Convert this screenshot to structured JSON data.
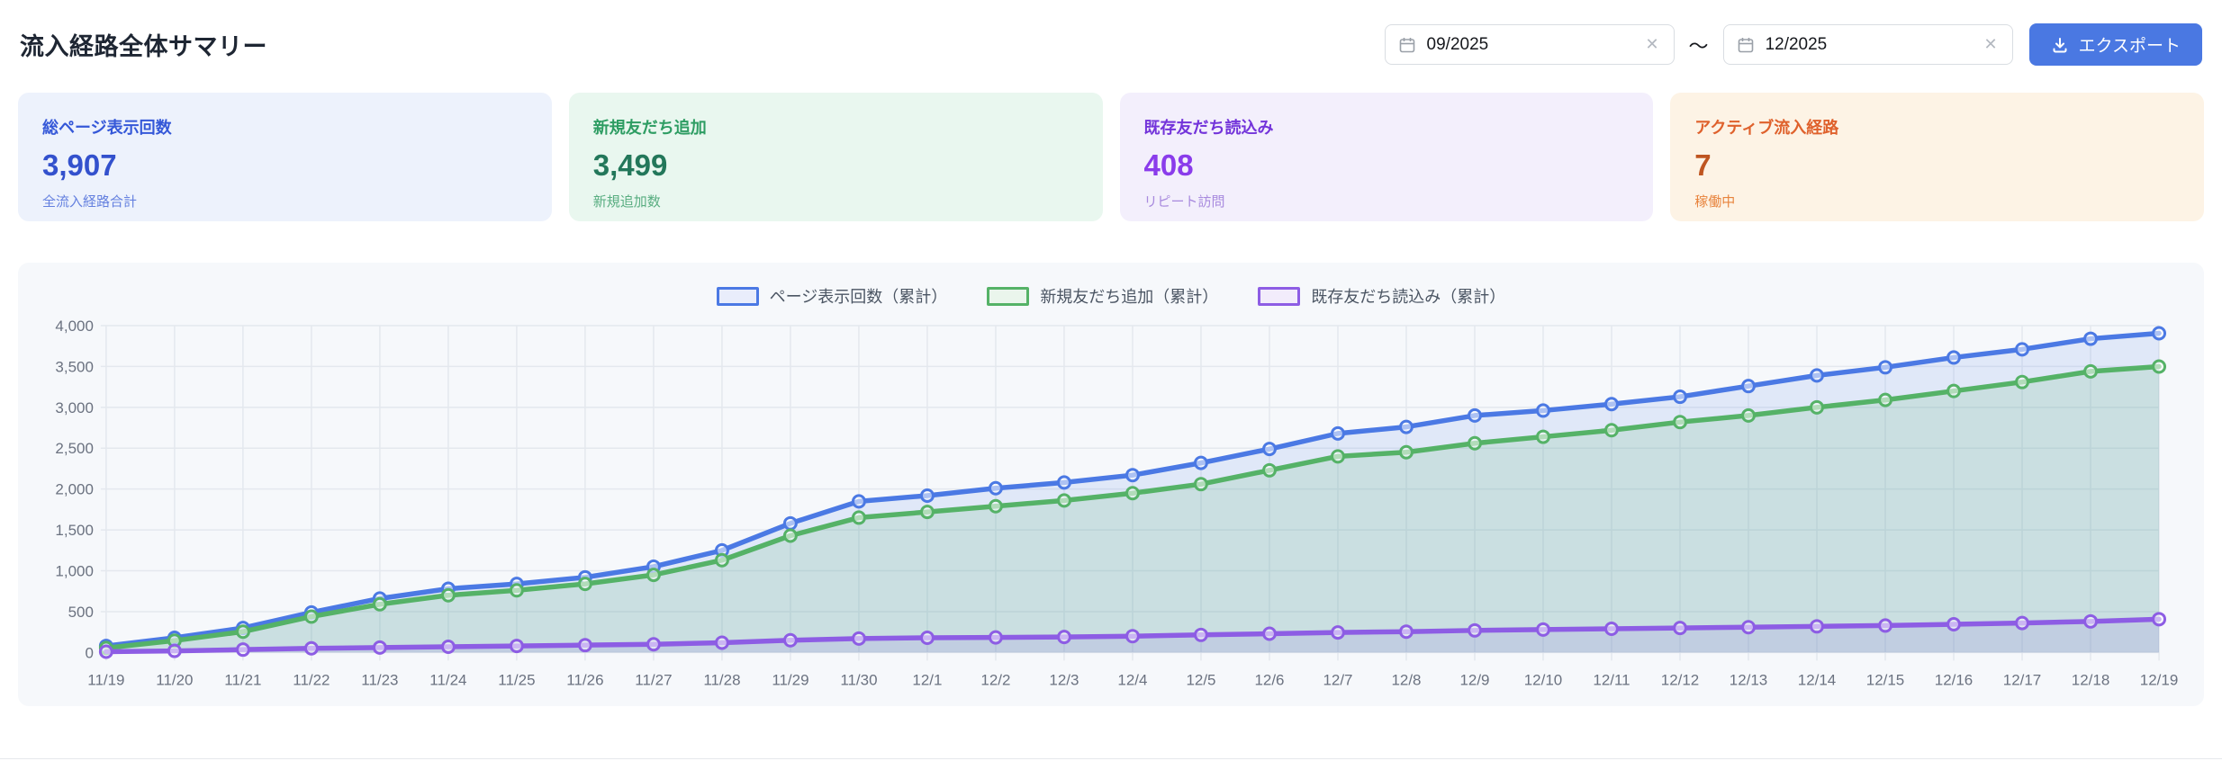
{
  "header": {
    "title": "流入経路全体サマリー",
    "date_from": "09/2025",
    "date_to": "12/2025",
    "range_separator": "～",
    "clear_glyph": "✕",
    "export_label": "エクスポート",
    "accent_color": "#4a78e2"
  },
  "cards": [
    {
      "title": "総ページ表示回数",
      "value": "3,907",
      "subtitle": "全流入経路合計",
      "theme": "blue"
    },
    {
      "title": "新規友だち追加",
      "value": "3,499",
      "subtitle": "新規追加数",
      "theme": "green"
    },
    {
      "title": "既存友だち読込み",
      "value": "408",
      "subtitle": "リピート訪問",
      "theme": "purple"
    },
    {
      "title": "アクティブ流入経路",
      "value": "7",
      "subtitle": "稼働中",
      "theme": "orange"
    }
  ],
  "chart_data": {
    "type": "area",
    "x": [
      "11/19",
      "11/20",
      "11/21",
      "11/22",
      "11/23",
      "11/24",
      "11/25",
      "11/26",
      "11/27",
      "11/28",
      "11/29",
      "11/30",
      "12/1",
      "12/2",
      "12/3",
      "12/4",
      "12/5",
      "12/6",
      "12/7",
      "12/8",
      "12/9",
      "12/10",
      "12/11",
      "12/12",
      "12/13",
      "12/14",
      "12/15",
      "12/16",
      "12/17",
      "12/18",
      "12/19"
    ],
    "series": [
      {
        "name": "ページ表示回数（累計）",
        "color": "#4b79e4",
        "fill": "rgba(75,121,228,0.13)",
        "legend_fill": "#e9edfb",
        "values": [
          80,
          180,
          300,
          490,
          660,
          780,
          840,
          920,
          1050,
          1250,
          1580,
          1850,
          1920,
          2010,
          2080,
          2170,
          2320,
          2490,
          2680,
          2760,
          2900,
          2960,
          3040,
          3130,
          3260,
          3390,
          3490,
          3610,
          3710,
          3840,
          3907
        ]
      },
      {
        "name": "新規友だち追加（累計）",
        "color": "#55b267",
        "fill": "rgba(85,178,103,0.16)",
        "legend_fill": "#eaf5ec",
        "values": [
          55,
          145,
          255,
          440,
          590,
          700,
          760,
          840,
          950,
          1130,
          1430,
          1650,
          1720,
          1790,
          1860,
          1950,
          2060,
          2230,
          2400,
          2450,
          2560,
          2640,
          2720,
          2820,
          2900,
          3000,
          3090,
          3200,
          3310,
          3440,
          3499
        ]
      },
      {
        "name": "既存友だち読込み（累計）",
        "color": "#8d5de4",
        "fill": "rgba(141,93,228,0.13)",
        "legend_fill": "#f2ecfb",
        "values": [
          10,
          20,
          35,
          50,
          60,
          70,
          80,
          90,
          100,
          120,
          150,
          170,
          180,
          185,
          190,
          200,
          215,
          230,
          245,
          255,
          270,
          280,
          290,
          300,
          310,
          320,
          330,
          345,
          360,
          380,
          408
        ]
      }
    ],
    "ylim": [
      0,
      4000
    ],
    "ytick_step": 500,
    "grid": true,
    "legend_position": "top",
    "axis_text_color": "#6b7280",
    "grid_color": "#e4e8ee"
  }
}
